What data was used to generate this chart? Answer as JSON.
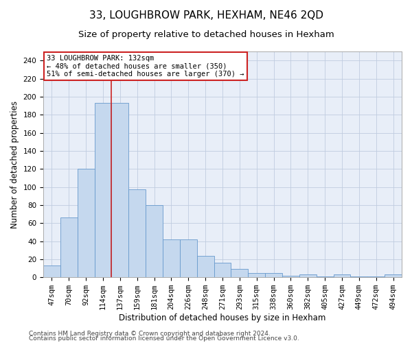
{
  "title": "33, LOUGHBROW PARK, HEXHAM, NE46 2QD",
  "subtitle": "Size of property relative to detached houses in Hexham",
  "xlabel": "Distribution of detached houses by size in Hexham",
  "ylabel": "Number of detached properties",
  "categories": [
    "47sqm",
    "70sqm",
    "92sqm",
    "114sqm",
    "137sqm",
    "159sqm",
    "181sqm",
    "204sqm",
    "226sqm",
    "248sqm",
    "271sqm",
    "293sqm",
    "315sqm",
    "338sqm",
    "360sqm",
    "382sqm",
    "405sqm",
    "427sqm",
    "449sqm",
    "472sqm",
    "494sqm"
  ],
  "values": [
    13,
    66,
    120,
    193,
    193,
    97,
    80,
    42,
    42,
    24,
    16,
    9,
    5,
    5,
    2,
    3,
    1,
    3,
    1,
    1,
    3
  ],
  "bar_color": "#c5d8ee",
  "bar_edge_color": "#6699cc",
  "vline_pos": 3.5,
  "vline_color": "#cc2222",
  "annotation_text": "33 LOUGHBROW PARK: 132sqm\n← 48% of detached houses are smaller (350)\n51% of semi-detached houses are larger (370) →",
  "annotation_box_facecolor": "#ffffff",
  "annotation_box_edgecolor": "#cc2222",
  "ylim": [
    0,
    250
  ],
  "yticks": [
    0,
    20,
    40,
    60,
    80,
    100,
    120,
    140,
    160,
    180,
    200,
    220,
    240
  ],
  "footer1": "Contains HM Land Registry data © Crown copyright and database right 2024.",
  "footer2": "Contains public sector information licensed under the Open Government Licence v3.0.",
  "bg_color": "#e8eef8",
  "grid_color": "#c0cce0",
  "title_fontsize": 11,
  "subtitle_fontsize": 9.5,
  "label_fontsize": 8.5,
  "tick_fontsize": 7.5,
  "annotation_fontsize": 7.5,
  "footer_fontsize": 6.5
}
